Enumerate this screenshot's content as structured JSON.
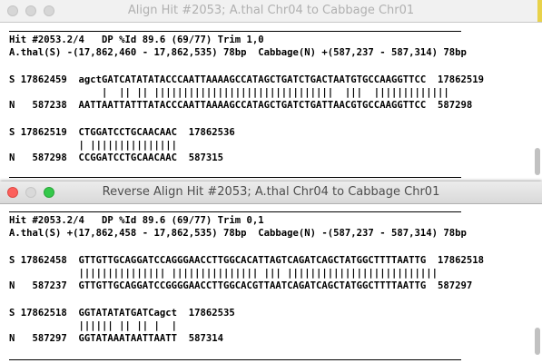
{
  "windows": [
    {
      "title": "Align Hit #2053; A.thal Chr04 to Cabbage Chr01",
      "lines": [
        "Hit #2053.2/4   DP %Id 89.6 (69/77) Trim 1,0",
        "A.thal(S) -(17,862,460 - 17,862,535) 78bp  Cabbage(N) +(587,237 - 587,314) 78bp",
        "",
        "S 17862459  agctGATCATATATACCCAATTAAAAGCCATAGCTGATCTGACTAATGTGCCAAGGTTCC  17862519",
        "                |  || || |||||||||||||||||||||||||||||||  |||  |||||||||||||",
        "N   587238  AATTAATTATTTATACCCAATTAAAAGCCATAGCTGATCTGATTAACGTGCCAAGGTTCC  587298",
        "",
        "S 17862519  CTGGATCCTGCAACAAC  17862536",
        "            | |||||||||||||||",
        "N   587298  CCGGATCCTGCAACAAC  587315"
      ]
    },
    {
      "title": "Reverse Align Hit #2053; A.thal Chr04 to Cabbage Chr01",
      "lines": [
        "Hit #2053.2/4   DP %Id 89.6 (69/77) Trim 0,1",
        "A.thal(S) +(17,862,458 - 17,862,535) 78bp  Cabbage(N) -(587,237 - 587,314) 78bp",
        "",
        "S 17862458  GTTGTTGCAGGATCCAGGGAACCTTGGCACATTAGTCAGATCAGCTATGGCTTTTAATTG  17862518",
        "            ||||||||||||||| ||||||||||||||| ||| ||||||||||||||||||||||||||",
        "N   587237  GTTGTTGCAGGATCCGGGGAACCTTGGCACGTTAATCAGATCAGCTATGGCTTTTAATTG  587297",
        "",
        "S 17862518  GGTATATATGATCagct  17862535",
        "            |||||| || || |  |",
        "N   587297  GGTATAAATAATTAATT  587314"
      ]
    }
  ]
}
